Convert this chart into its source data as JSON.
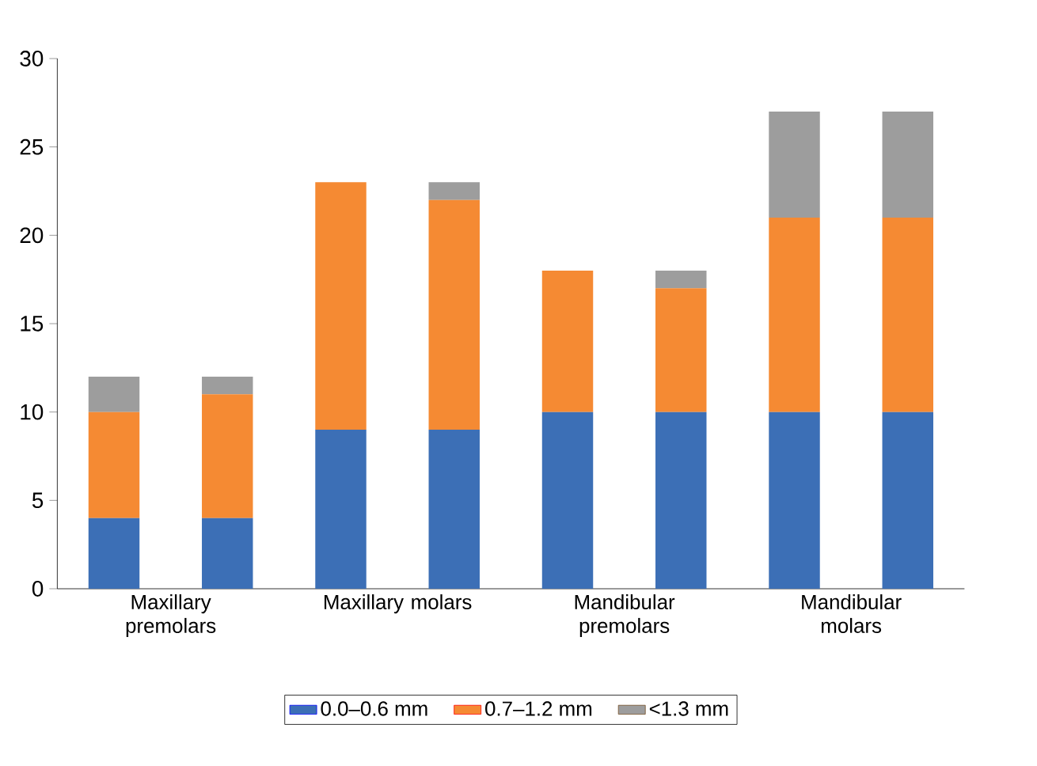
{
  "chart_data": {
    "type": "bar",
    "stacked": true,
    "categories": [
      "Maxillary premolars",
      null,
      "Maxillary molars",
      null,
      "Mandibular premolars",
      null,
      "Mandibular molars",
      null
    ],
    "series": [
      {
        "name": "0.0–0.6 mm",
        "color": "#3c6fb6",
        "values": [
          4,
          4,
          9,
          9,
          10,
          10,
          10,
          10
        ]
      },
      {
        "name": "0.7–1.2 mm",
        "color": "#f58a33",
        "values": [
          6,
          7,
          14,
          13,
          8,
          7,
          11,
          11
        ]
      },
      {
        "name": "<1.3 mm",
        "color": "#9d9d9d",
        "values": [
          2,
          1,
          0,
          1,
          0,
          1,
          6,
          6
        ]
      }
    ],
    "ylim": [
      0,
      30
    ],
    "yticks": [
      0,
      5,
      10,
      15,
      20,
      25,
      30
    ],
    "grid": false,
    "legend": "bottom"
  }
}
